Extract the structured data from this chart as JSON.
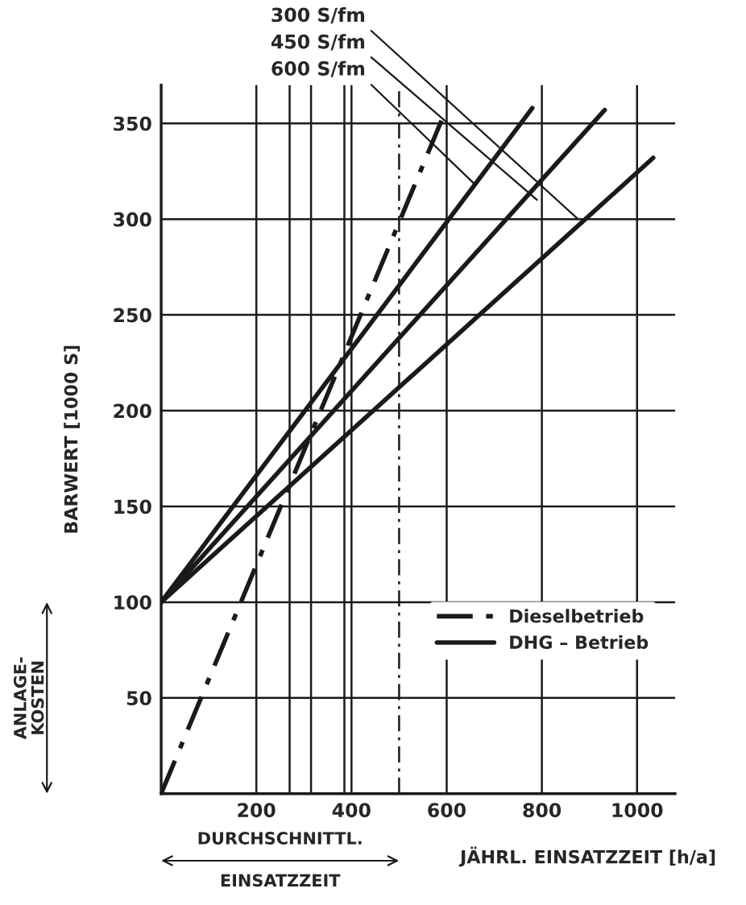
{
  "chart_data": {
    "type": "line",
    "xlabel": "JÄHRL. EINSATZZEIT [h/a]",
    "ylabel": "BARWERT [1000 S]",
    "xlim": [
      0,
      1080
    ],
    "ylim": [
      0,
      370
    ],
    "xticks": [
      {
        "value": 0,
        "label": null
      },
      200,
      400,
      600,
      800,
      1000
    ],
    "yticks": [
      50,
      100,
      150,
      200,
      250,
      300,
      350
    ],
    "grid": true,
    "legend": "right",
    "series": [
      {
        "name": "Dieselbetrieb",
        "color": "#1a1a1a",
        "line_style": "dashed",
        "x": [
          0,
          600
        ],
        "values": [
          0,
          358
        ]
      },
      {
        "name": "DHG – Betrieb",
        "color": "#1a1a1a",
        "line_style": "solid",
        "x": [
          0,
          780
        ],
        "values": [
          100,
          358
        ]
      },
      {
        "color": "#1a1a1a",
        "line_style": "solid",
        "x": [
          0,
          932
        ],
        "values": [
          100,
          357
        ]
      },
      {
        "color": "#1a1a1a",
        "line_style": "solid",
        "x": [
          0,
          1034
        ],
        "values": [
          100,
          332
        ]
      }
    ],
    "ref_lines": [
      {
        "axis": "x",
        "value": 270,
        "color": "#1a1a1a",
        "line_style": "solid"
      },
      {
        "axis": "x",
        "value": 315,
        "color": "#1a1a1a",
        "line_style": "solid"
      },
      {
        "axis": "x",
        "value": 385,
        "color": "#1a1a1a",
        "line_style": "solid"
      },
      {
        "axis": "x",
        "value": 500,
        "color": "#1a1a1a",
        "line_style": "dashed"
      }
    ],
    "annotations": [
      {
        "text": "300 S/fm",
        "x": 876,
        "y": 300
      },
      {
        "text": "450 S/fm",
        "x": 790,
        "y": 310
      },
      {
        "text": "600 S/fm",
        "x": 660,
        "y": 318
      },
      "ANLAGE-\nKOSTEN",
      "DURCHSCHNITTL.",
      "EINSATZZEIT"
    ]
  }
}
